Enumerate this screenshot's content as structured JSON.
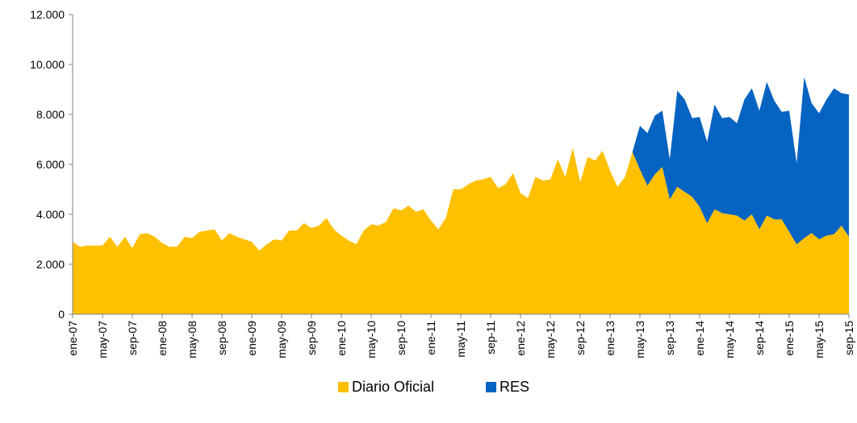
{
  "chart_data": {
    "type": "stacked_area",
    "categories": [
      "ene-07",
      null,
      null,
      null,
      "may-07",
      null,
      null,
      null,
      "sep-07",
      null,
      null,
      null,
      "ene-08",
      null,
      null,
      null,
      "may-08",
      null,
      null,
      null,
      "sep-08",
      null,
      null,
      null,
      "ene-09",
      null,
      null,
      null,
      "may-09",
      null,
      null,
      null,
      "sep-09",
      null,
      null,
      null,
      "ene-10",
      null,
      null,
      null,
      "may-10",
      null,
      null,
      null,
      "sep-10",
      null,
      null,
      null,
      "ene-11",
      null,
      null,
      null,
      "may-11",
      null,
      null,
      null,
      "sep-11",
      null,
      null,
      null,
      "ene-12",
      null,
      null,
      null,
      "may-12",
      null,
      null,
      null,
      "sep-12",
      null,
      null,
      null,
      "ene-13",
      null,
      null,
      null,
      "may-13",
      null,
      null,
      null,
      "sep-13",
      null,
      null,
      null,
      "ene-14",
      null,
      null,
      null,
      "may-14",
      null,
      null,
      null,
      "sep-14",
      null,
      null,
      null,
      "ene-15",
      null,
      null,
      null,
      "may-15",
      null,
      null,
      null,
      "sep-15"
    ],
    "series": [
      {
        "name": "Diario Oficial",
        "color": "#ffc000",
        "values": [
          2900,
          2700,
          2750,
          2750,
          2750,
          3100,
          2700,
          3100,
          2650,
          3200,
          3250,
          3100,
          2850,
          2700,
          2700,
          3100,
          3050,
          3300,
          3350,
          3400,
          2950,
          3250,
          3100,
          3000,
          2900,
          2550,
          2800,
          3000,
          2950,
          3350,
          3350,
          3650,
          3450,
          3550,
          3850,
          3400,
          3150,
          2950,
          2800,
          3350,
          3600,
          3550,
          3700,
          4250,
          4150,
          4350,
          4100,
          4200,
          3750,
          3400,
          3850,
          5000,
          5000,
          5200,
          5350,
          5400,
          5500,
          5050,
          5200,
          5650,
          4850,
          4650,
          5500,
          5350,
          5400,
          6200,
          5500,
          6650,
          5300,
          6300,
          6150,
          6550,
          5750,
          5100,
          5500,
          6500,
          5800,
          5150,
          5600,
          5900,
          4600,
          5100,
          4900,
          4700,
          4300,
          3650,
          4200,
          4050,
          4000,
          3950,
          3750,
          4000,
          3400,
          3950,
          3800,
          3800,
          3300,
          2800,
          3050,
          3250,
          3000,
          3150,
          3200,
          3550,
          3100
        ]
      },
      {
        "name": "RES",
        "color": "#0563c1",
        "values": [
          0,
          0,
          0,
          0,
          0,
          0,
          0,
          0,
          0,
          0,
          0,
          0,
          0,
          0,
          0,
          0,
          0,
          0,
          0,
          0,
          0,
          0,
          0,
          0,
          0,
          0,
          0,
          0,
          0,
          0,
          0,
          0,
          0,
          0,
          0,
          0,
          0,
          0,
          0,
          0,
          0,
          0,
          0,
          0,
          0,
          0,
          0,
          0,
          0,
          0,
          0,
          0,
          0,
          0,
          0,
          0,
          0,
          0,
          0,
          0,
          0,
          0,
          0,
          0,
          0,
          0,
          0,
          0,
          0,
          0,
          0,
          0,
          0,
          0,
          0,
          0,
          1750,
          2100,
          2350,
          2250,
          1600,
          3850,
          3700,
          3150,
          3600,
          3250,
          4200,
          3800,
          3900,
          3700,
          4850,
          5050,
          4750,
          5350,
          4750,
          4300,
          4850,
          3250,
          6450,
          5200,
          5050,
          5450,
          5850,
          5300,
          5700
        ]
      }
    ],
    "ylim": [
      0,
      12000
    ],
    "yticks": [
      0,
      {
        "value": 2000,
        "label": "2.000"
      },
      {
        "value": 4000,
        "label": "4.000"
      },
      {
        "value": 6000,
        "label": "6.000"
      },
      {
        "value": 8000,
        "label": "8.000"
      },
      {
        "value": 10000,
        "label": "10.000"
      },
      {
        "value": 12000,
        "label": "12.000"
      }
    ],
    "legend": "bottom"
  }
}
